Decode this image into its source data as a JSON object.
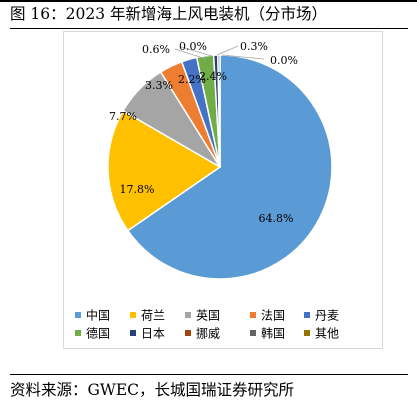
{
  "title": "图 16：2023 年新增海上风电装机（分市场）",
  "source": "资料来源：GWEC，长城国瑞证券研究所",
  "chart_data": {
    "type": "pie",
    "title": "",
    "categories": [
      "中国",
      "荷兰",
      "英国",
      "法国",
      "丹麦",
      "德国",
      "日本",
      "挪威",
      "韩国",
      "其他"
    ],
    "values": [
      64.8,
      17.8,
      7.7,
      3.3,
      2.2,
      2.4,
      0.6,
      0.0,
      0.3,
      0.0
    ],
    "labels": [
      "64.8%",
      "17.8%",
      "7.7%",
      "3.3%",
      "2.2%",
      "2.4%",
      "0.6%",
      "0.0%",
      "0.3%",
      "0.0%"
    ],
    "colors": [
      "#5B9BD5",
      "#FFC000",
      "#A5A5A5",
      "#ED7D31",
      "#4472C4",
      "#70AD47",
      "#264478",
      "#9E480E",
      "#636363",
      "#997300"
    ],
    "legend_position": "bottom",
    "start_angle_deg": 0,
    "direction": "clockwise"
  }
}
